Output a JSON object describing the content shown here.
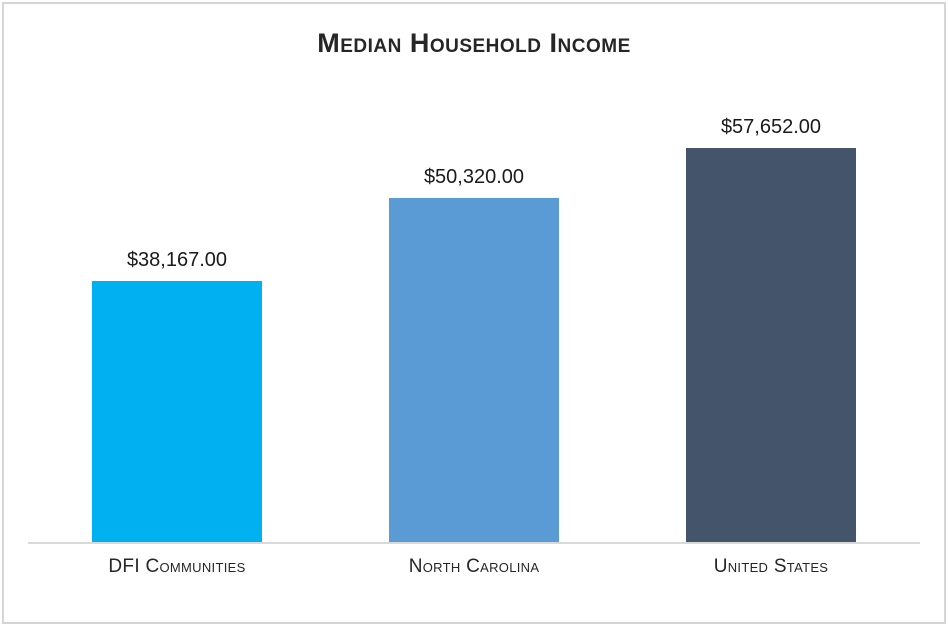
{
  "chart_data": {
    "type": "bar",
    "title": "Median Household Income",
    "categories": [
      "DFI Communities",
      "North Carolina",
      "United States"
    ],
    "values": [
      38167,
      50320,
      57652
    ],
    "value_labels": [
      "$38,167.00",
      "$50,320.00",
      "$57,652.00"
    ],
    "series": [
      {
        "name": "Median Household Income",
        "values": [
          38167,
          50320,
          57652
        ]
      }
    ],
    "colors": [
      "#00b0f0",
      "#5b9bd5",
      "#44546a"
    ],
    "xlabel": "",
    "ylabel": "",
    "ylim": [
      0,
      60000
    ],
    "grid": false,
    "legend": false,
    "data_labels": true,
    "axis_line_color": "#d9d9d9",
    "frame_border_color": "#d5d5d5"
  }
}
